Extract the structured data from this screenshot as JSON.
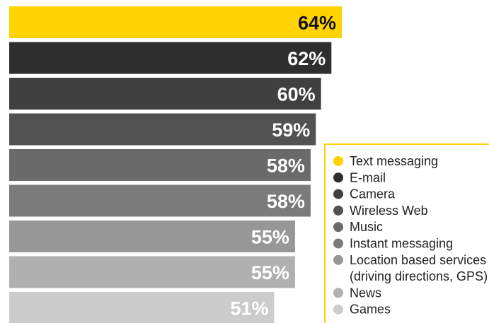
{
  "chart_data": {
    "type": "bar",
    "orientation": "horizontal",
    "categories": [
      "Text messaging",
      "E-mail",
      "Camera",
      "Wireless Web",
      "Music",
      "Instant messaging",
      "Location based services (driving directions, GPS)",
      "News",
      "Games"
    ],
    "values": [
      64,
      62,
      60,
      59,
      58,
      58,
      55,
      55,
      51
    ],
    "value_labels": [
      "64%",
      "62%",
      "60%",
      "59%",
      "58%",
      "58%",
      "55%",
      "55%",
      "51%"
    ],
    "colors": [
      "#FFD200",
      "#2E2E2E",
      "#404040",
      "#525252",
      "#6A6A6A",
      "#7B7B7B",
      "#979797",
      "#B0B0B0",
      "#CCCCCC"
    ],
    "label_colors": [
      "#111111",
      "#ffffff",
      "#ffffff",
      "#ffffff",
      "#ffffff",
      "#ffffff",
      "#ffffff",
      "#ffffff",
      "#ffffff"
    ],
    "legend": {
      "position": "right",
      "border_color": "#FFD200",
      "lines": [
        [
          "Text messaging"
        ],
        [
          "E-mail"
        ],
        [
          "Camera"
        ],
        [
          "Wireless Web"
        ],
        [
          "Music"
        ],
        [
          "Instant messaging"
        ],
        [
          "Location based services",
          "(driving directions, GPS)"
        ],
        [
          "News"
        ],
        [
          "Games"
        ]
      ]
    },
    "grid": false
  }
}
